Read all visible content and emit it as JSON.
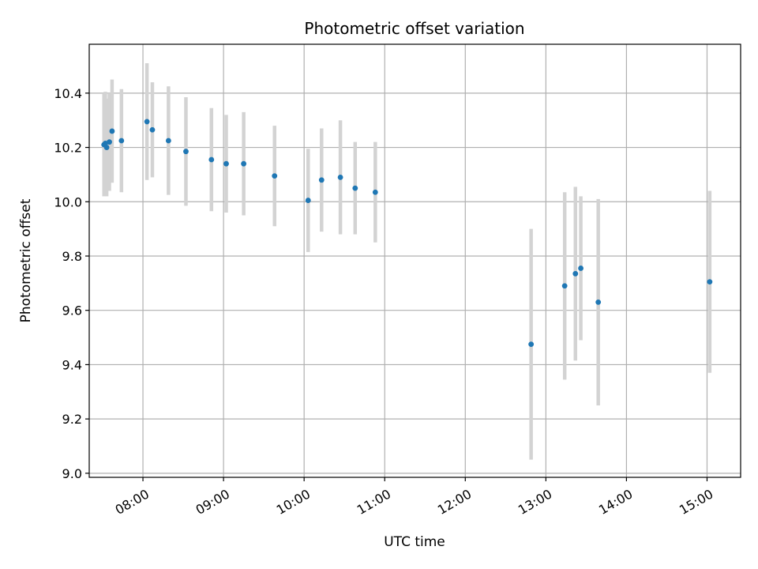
{
  "chart_data": {
    "type": "scatter",
    "title": "Photometric offset variation",
    "xlabel": "UTC time",
    "ylabel": "Photometric offset",
    "grid": true,
    "x_range": [
      "07:20",
      "15:25"
    ],
    "ylim": [
      8.985,
      10.58
    ],
    "x_ticks": [
      "08:00",
      "09:00",
      "10:00",
      "11:00",
      "12:00",
      "13:00",
      "14:00",
      "15:00"
    ],
    "y_ticks": [
      "9.0",
      "9.2",
      "9.4",
      "9.6",
      "9.8",
      "10.0",
      "10.2",
      "10.4"
    ],
    "colors": {
      "point": "#1f77b4",
      "errorbar": "#d3d3d3",
      "grid": "#b0b0b0"
    },
    "points": [
      {
        "x": "07:31",
        "y": 10.21,
        "yerr": 0.19
      },
      {
        "x": "07:32",
        "y": 10.215,
        "yerr": 0.19
      },
      {
        "x": "07:33",
        "y": 10.2,
        "yerr": 0.18
      },
      {
        "x": "07:35",
        "y": 10.22,
        "yerr": 0.18
      },
      {
        "x": "07:37",
        "y": 10.26,
        "yerr": 0.19
      },
      {
        "x": "07:44",
        "y": 10.225,
        "yerr": 0.19
      },
      {
        "x": "08:03",
        "y": 10.295,
        "yerr": 0.215
      },
      {
        "x": "08:07",
        "y": 10.265,
        "yerr": 0.175
      },
      {
        "x": "08:19",
        "y": 10.225,
        "yerr": 0.2
      },
      {
        "x": "08:32",
        "y": 10.185,
        "yerr": 0.2
      },
      {
        "x": "08:51",
        "y": 10.155,
        "yerr": 0.19
      },
      {
        "x": "09:02",
        "y": 10.14,
        "yerr": 0.18
      },
      {
        "x": "09:15",
        "y": 10.14,
        "yerr": 0.19
      },
      {
        "x": "09:38",
        "y": 10.095,
        "yerr": 0.185
      },
      {
        "x": "10:03",
        "y": 10.005,
        "yerr": 0.19
      },
      {
        "x": "10:13",
        "y": 10.08,
        "yerr": 0.19
      },
      {
        "x": "10:27",
        "y": 10.09,
        "yerr": 0.21
      },
      {
        "x": "10:38",
        "y": 10.05,
        "yerr": 0.17
      },
      {
        "x": "10:53",
        "y": 10.035,
        "yerr": 0.185
      },
      {
        "x": "12:49",
        "y": 9.475,
        "yerr": 0.425
      },
      {
        "x": "13:14",
        "y": 9.69,
        "yerr": 0.345
      },
      {
        "x": "13:22",
        "y": 9.735,
        "yerr": 0.32
      },
      {
        "x": "13:26",
        "y": 9.755,
        "yerr": 0.265
      },
      {
        "x": "13:39",
        "y": 9.63,
        "yerr": 0.38
      },
      {
        "x": "15:02",
        "y": 9.705,
        "yerr": 0.335
      }
    ]
  }
}
